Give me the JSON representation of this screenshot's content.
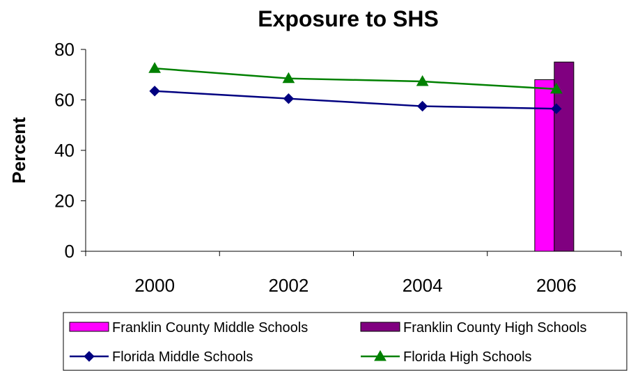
{
  "chart_data": {
    "type": "line",
    "title": "Exposure to SHS",
    "xlabel": "",
    "ylabel": "Percent",
    "categories": [
      "2000",
      "2002",
      "2004",
      "2006"
    ],
    "ylim": [
      0,
      80
    ],
    "yticks": [
      0,
      20,
      40,
      60,
      80
    ],
    "grid": false,
    "legend_position": "bottom",
    "series": [
      {
        "name": "Franklin County Middle Schools",
        "kind": "bar",
        "color": "#ff00ff",
        "values": [
          null,
          null,
          null,
          68
        ]
      },
      {
        "name": "Franklin County High Schools",
        "kind": "bar",
        "color": "#800080",
        "values": [
          null,
          null,
          null,
          75
        ]
      },
      {
        "name": "Florida Middle Schools",
        "kind": "line",
        "marker": "diamond",
        "color": "#000080",
        "values": [
          63.5,
          60.5,
          57.5,
          56.5
        ]
      },
      {
        "name": "Florida High Schools",
        "kind": "line",
        "marker": "triangle",
        "color": "#008000",
        "values": [
          72.5,
          68.5,
          67.3,
          64.3
        ]
      }
    ]
  }
}
